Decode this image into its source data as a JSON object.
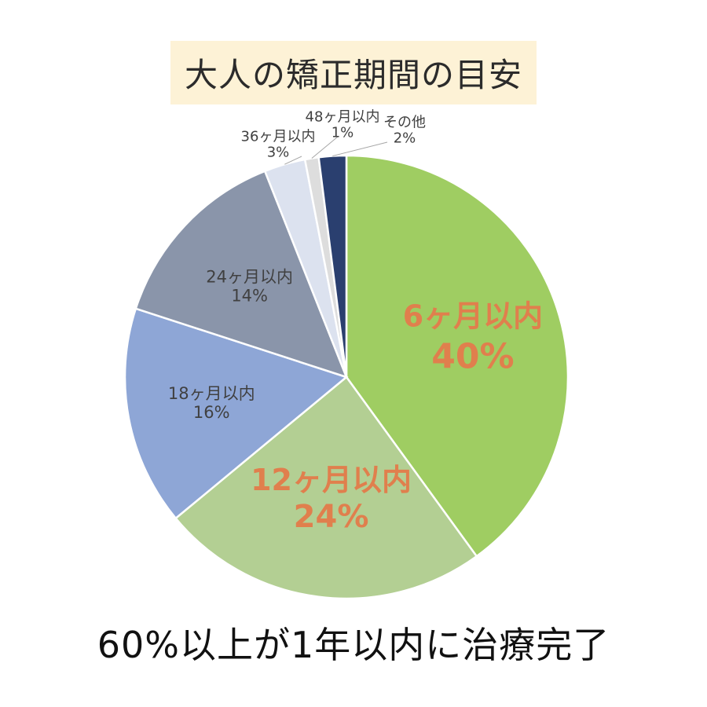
{
  "chart_data": {
    "type": "pie",
    "title": "大人の矯正期間の目安",
    "subtitle": "60%以上が1年以内に治療完了",
    "slices": [
      {
        "label": "6ヶ月以内",
        "value": 40,
        "value_label": "40%",
        "color": "#9fcd62",
        "text_color": "#e07f4d"
      },
      {
        "label": "12ヶ月以内",
        "value": 24,
        "value_label": "24%",
        "color": "#b3cf93",
        "text_color": "#e07f4d"
      },
      {
        "label": "18ヶ月以内",
        "value": 16,
        "value_label": "16%",
        "color": "#8ea6d6",
        "text_color": "#404040"
      },
      {
        "label": "24ヶ月以内",
        "value": 14,
        "value_label": "14%",
        "color": "#8a95aa",
        "text_color": "#404040"
      },
      {
        "label": "36ヶ月以内",
        "value": 3,
        "value_label": "3%",
        "color": "#dce2ef",
        "text_color": "#404040"
      },
      {
        "label": "48ヶ月以内",
        "value": 1,
        "value_label": "1%",
        "color": "#dddddd",
        "text_color": "#404040"
      },
      {
        "label": "その他",
        "value": 2,
        "value_label": "2%",
        "color": "#2a3f6f",
        "text_color": "#404040"
      }
    ],
    "legend": "none"
  }
}
